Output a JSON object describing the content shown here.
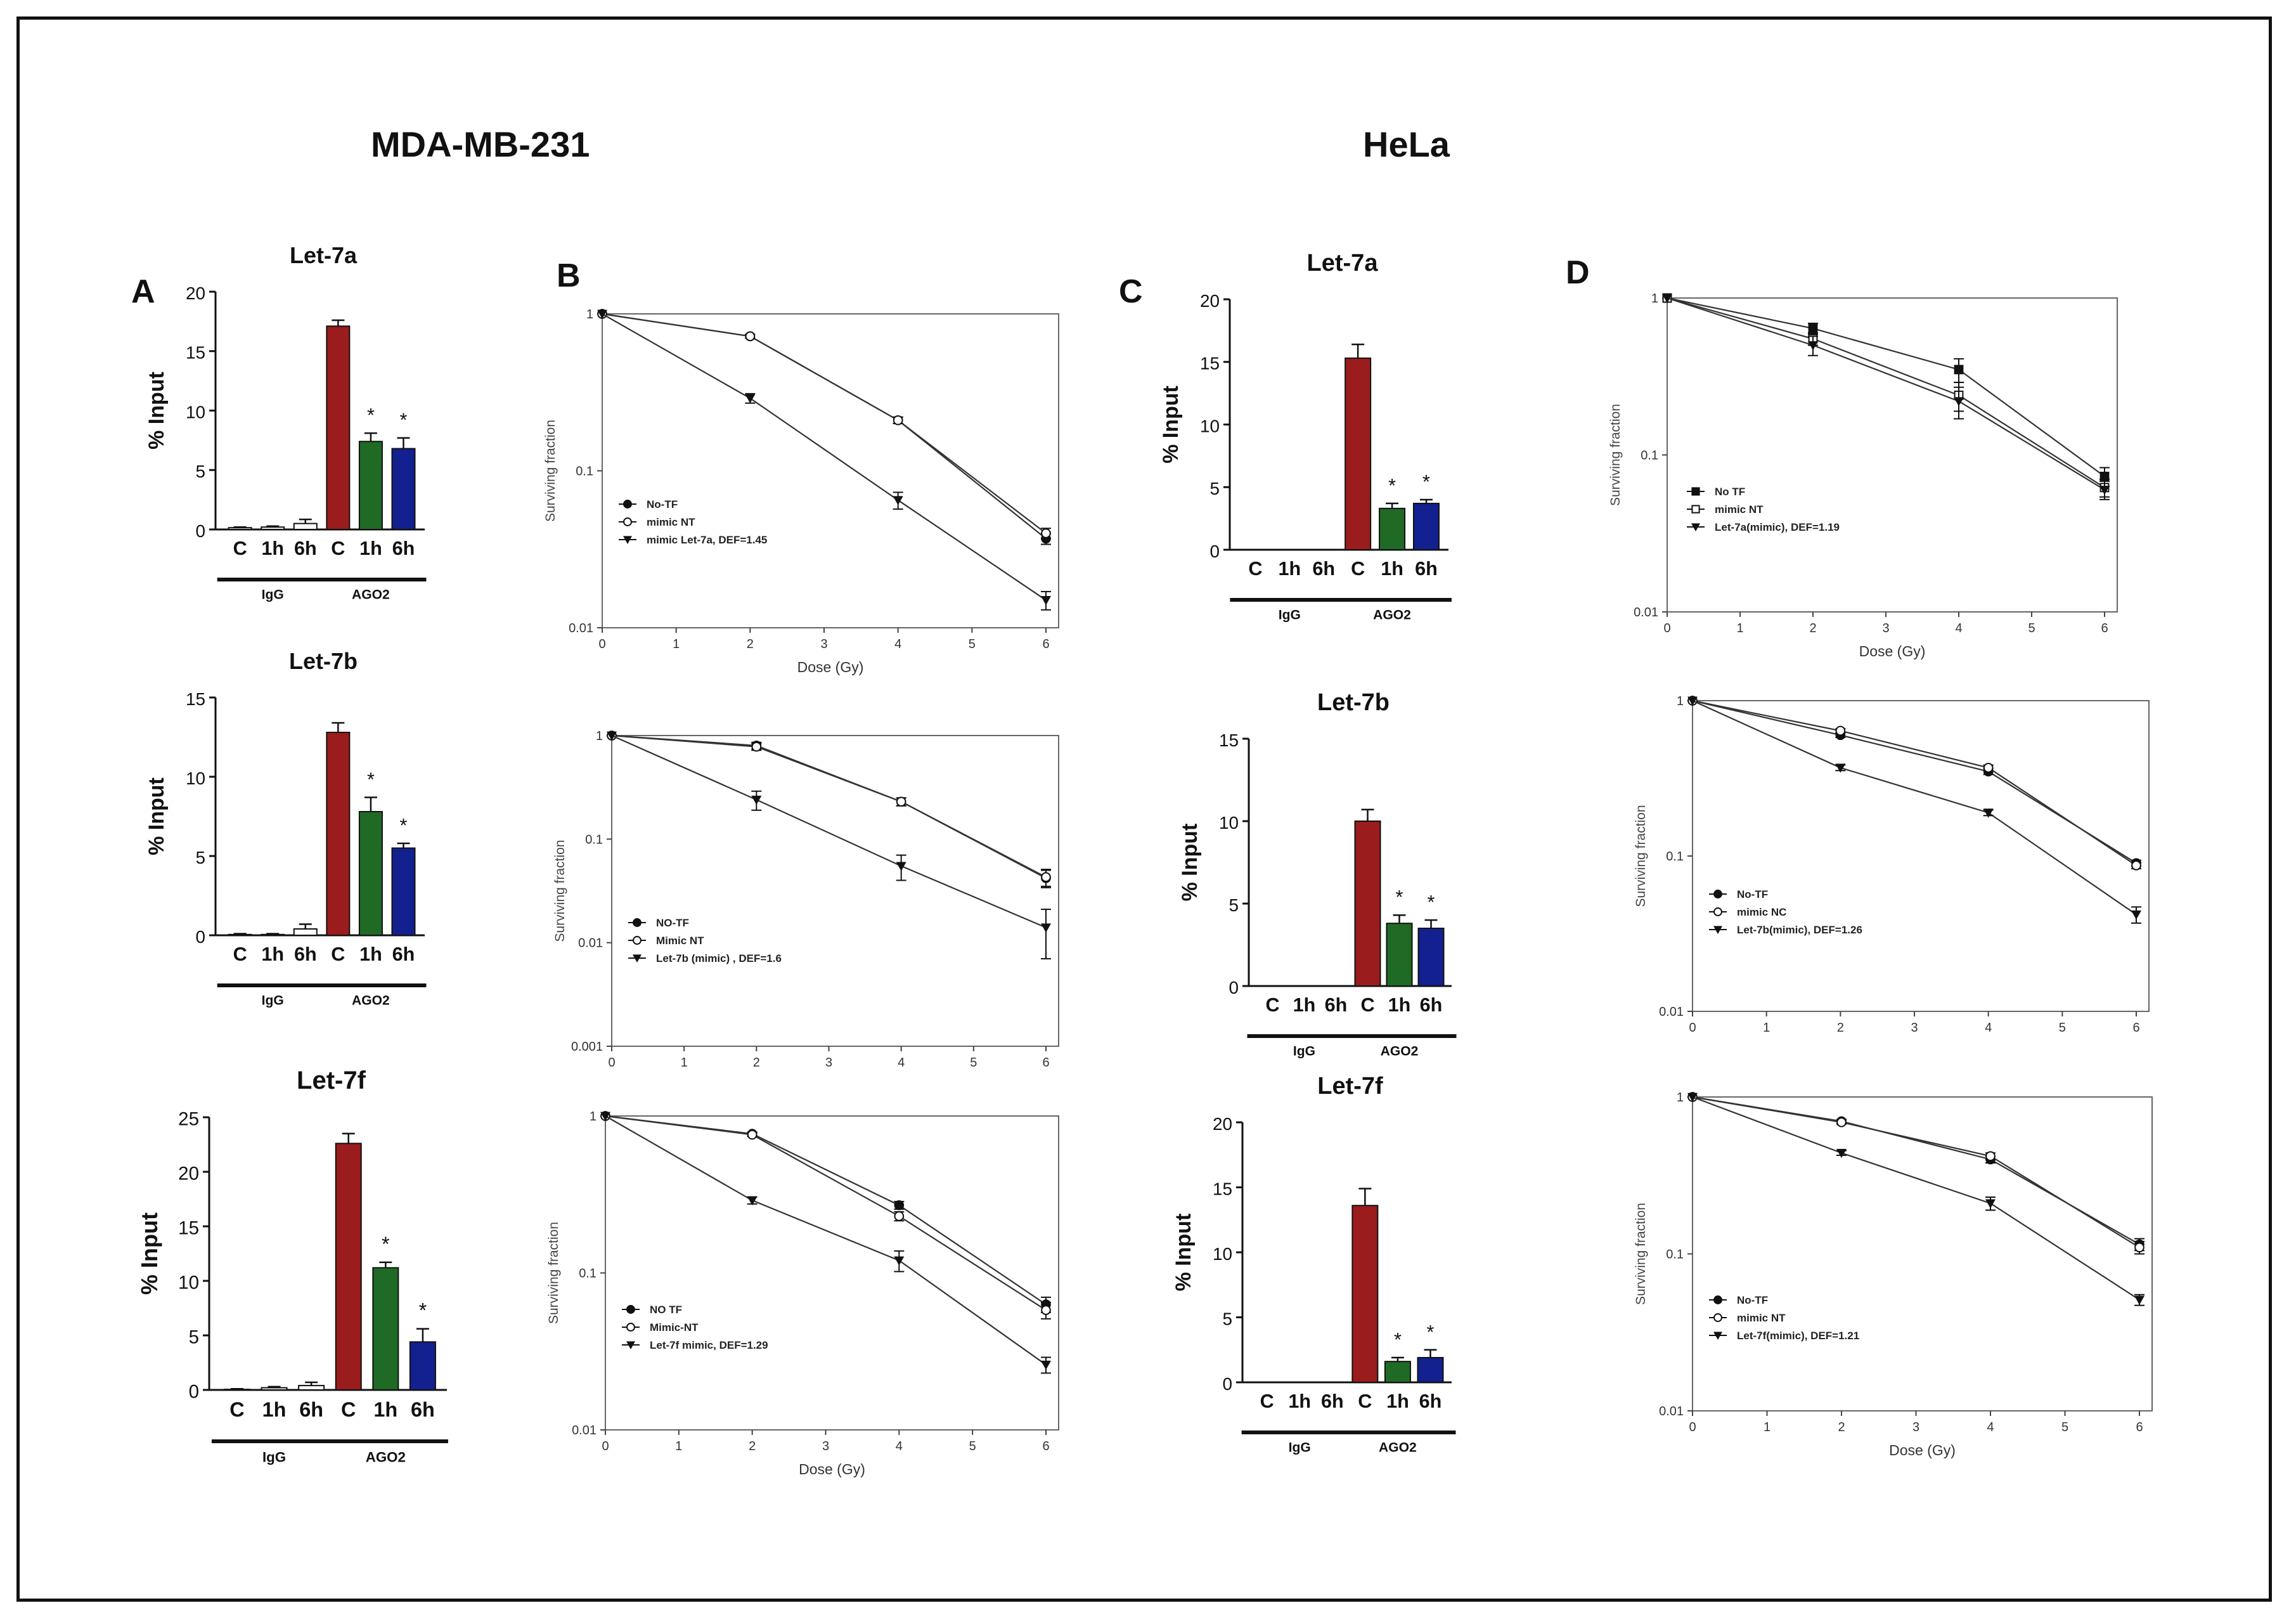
{
  "titles": {
    "left": "MDA-MB-231",
    "right": "HeLa"
  },
  "panels": {
    "a": "A",
    "b": "B",
    "c": "C",
    "d": "D"
  },
  "colors": {
    "bar_c": "#9b1c1c",
    "bar_1h": "#1f6b25",
    "bar_6h": "#13208f",
    "igg": "#ffffff"
  },
  "chart_data": [
    {
      "id": "A1",
      "type": "bar",
      "title": "Let-7a",
      "ylabel": "% Input",
      "ylim": [
        0,
        20
      ],
      "yticks": [
        0,
        5,
        10,
        15,
        20
      ],
      "categories": [
        "C",
        "1h",
        "6h",
        "C",
        "1h",
        "6h"
      ],
      "groups": [
        "IgG",
        "AGO2"
      ],
      "values": [
        0.15,
        0.2,
        0.5,
        17.1,
        7.4,
        6.8
      ],
      "errors": [
        0.05,
        0.08,
        0.35,
        0.5,
        0.7,
        0.9
      ],
      "significance": [
        "",
        "",
        "",
        "",
        "*",
        "*"
      ]
    },
    {
      "id": "A2",
      "type": "bar",
      "title": "Let-7b",
      "ylabel": "% Input",
      "ylim": [
        0,
        15
      ],
      "yticks": [
        0,
        5,
        10,
        15
      ],
      "categories": [
        "C",
        "1h",
        "6h",
        "C",
        "1h",
        "6h"
      ],
      "groups": [
        "IgG",
        "AGO2"
      ],
      "values": [
        0.05,
        0.05,
        0.4,
        12.8,
        7.8,
        5.5
      ],
      "errors": [
        0.05,
        0.05,
        0.3,
        0.6,
        0.9,
        0.3
      ],
      "significance": [
        "",
        "",
        "",
        "",
        "*",
        "*"
      ]
    },
    {
      "id": "A3",
      "type": "bar",
      "title": "Let-7f",
      "ylabel": "% Input",
      "ylim": [
        0,
        25
      ],
      "yticks": [
        0,
        5,
        10,
        15,
        20,
        25
      ],
      "categories": [
        "C",
        "1h",
        "6h",
        "C",
        "1h",
        "6h"
      ],
      "groups": [
        "IgG",
        "AGO2"
      ],
      "values": [
        0.05,
        0.2,
        0.4,
        22.6,
        11.2,
        4.4
      ],
      "errors": [
        0.05,
        0.1,
        0.3,
        0.9,
        0.5,
        1.2
      ],
      "significance": [
        "",
        "",
        "",
        "",
        "*",
        "*"
      ]
    },
    {
      "id": "B1",
      "type": "line",
      "yscale": "log",
      "xlabel": "Dose (Gy)",
      "ylabel": "Surviving fraction",
      "xlim": [
        0,
        6
      ],
      "xticks": [
        0,
        1,
        2,
        3,
        4,
        5,
        6
      ],
      "yrange": [
        0.01,
        1
      ],
      "yticks": [
        0.01,
        0.1,
        1
      ],
      "ytick_labels": [
        "0.01",
        "0.1",
        "1"
      ],
      "series": [
        {
          "name": "No-TF",
          "marker": "filled-circle",
          "x": [
            0,
            2,
            4,
            6
          ],
          "y": [
            1,
            0.72,
            0.21,
            0.037
          ],
          "err": [
            0,
            0.02,
            0.01,
            0.003
          ]
        },
        {
          "name": "mimic NT",
          "marker": "open-circle",
          "x": [
            0,
            2,
            4,
            6
          ],
          "y": [
            1,
            0.72,
            0.21,
            0.04
          ],
          "err": [
            0,
            0.02,
            0.01,
            0.003
          ]
        },
        {
          "name": "mimic Let-7a,  DEF=1.45",
          "marker": "filled-triangle",
          "x": [
            0,
            2,
            4,
            6
          ],
          "y": [
            1,
            0.29,
            0.065,
            0.015
          ],
          "err": [
            0,
            0.02,
            0.008,
            0.002
          ]
        }
      ]
    },
    {
      "id": "B2",
      "type": "line",
      "yscale": "log",
      "xlabel": "",
      "ylabel": "Surviving fraction",
      "xlim": [
        0,
        6
      ],
      "xticks": [
        0,
        1,
        2,
        3,
        4,
        5,
        6
      ],
      "yrange": [
        0.001,
        1
      ],
      "yticks": [
        0.001,
        0.01,
        0.1,
        1
      ],
      "ytick_labels": [
        "0.001",
        "0.01",
        "0.1",
        "1"
      ],
      "series": [
        {
          "name": "NO-TF",
          "marker": "filled-circle",
          "x": [
            0,
            2,
            4,
            6
          ],
          "y": [
            1,
            0.8,
            0.23,
            0.042
          ],
          "err": [
            0,
            0.06,
            0.02,
            0.008
          ]
        },
        {
          "name": "Mimic NT",
          "marker": "open-circle",
          "x": [
            0,
            2,
            4,
            6
          ],
          "y": [
            1,
            0.78,
            0.23,
            0.043
          ],
          "err": [
            0,
            0.06,
            0.02,
            0.008
          ]
        },
        {
          "name": "Let-7b (mimic) , DEF=1.6",
          "marker": "filled-triangle",
          "x": [
            0,
            2,
            4,
            6
          ],
          "y": [
            1,
            0.24,
            0.055,
            0.014
          ],
          "err": [
            0,
            0.05,
            0.015,
            0.007
          ]
        }
      ]
    },
    {
      "id": "B3",
      "type": "line",
      "yscale": "log",
      "xlabel": "Dose (Gy)",
      "ylabel": "Surviving fraction",
      "xlim": [
        0,
        6
      ],
      "xticks": [
        0,
        1,
        2,
        3,
        4,
        5,
        6
      ],
      "yrange": [
        0.01,
        1
      ],
      "yticks": [
        0.01,
        0.1,
        1
      ],
      "ytick_labels": [
        "0.01",
        "0.1",
        "1"
      ],
      "series": [
        {
          "name": "NO TF",
          "marker": "filled-circle",
          "x": [
            0,
            2,
            4,
            6
          ],
          "y": [
            1,
            0.77,
            0.27,
            0.063
          ],
          "err": [
            0,
            0.02,
            0.015,
            0.007
          ]
        },
        {
          "name": "Mimic-NT",
          "marker": "open-circle",
          "x": [
            0,
            2,
            4,
            6
          ],
          "y": [
            1,
            0.76,
            0.23,
            0.058
          ],
          "err": [
            0,
            0.02,
            0.015,
            0.007
          ]
        },
        {
          "name": "Let-7f mimic,  DEF=1.29",
          "marker": "filled-triangle",
          "x": [
            0,
            2,
            4,
            6
          ],
          "y": [
            1,
            0.29,
            0.12,
            0.026
          ],
          "err": [
            0,
            0.015,
            0.018,
            0.003
          ]
        }
      ]
    },
    {
      "id": "C1",
      "type": "bar",
      "title": "Let-7a",
      "ylabel": "% Input",
      "ylim": [
        0,
        20
      ],
      "yticks": [
        0,
        5,
        10,
        15,
        20
      ],
      "categories": [
        "C",
        "1h",
        "6h",
        "C",
        "1h",
        "6h"
      ],
      "groups": [
        "IgG",
        "AGO2"
      ],
      "values": [
        0,
        0,
        0,
        15.3,
        3.3,
        3.7
      ],
      "errors": [
        0,
        0,
        0,
        1.1,
        0.4,
        0.3
      ],
      "significance": [
        "",
        "",
        "",
        "",
        "*",
        "*"
      ]
    },
    {
      "id": "C2",
      "type": "bar",
      "title": "Let-7b",
      "ylabel": "% Input",
      "ylim": [
        0,
        15
      ],
      "yticks": [
        0,
        5,
        10,
        15
      ],
      "categories": [
        "C",
        "1h",
        "6h",
        "C",
        "1h",
        "6h"
      ],
      "groups": [
        "IgG",
        "AGO2"
      ],
      "values": [
        0,
        0,
        0,
        10,
        3.8,
        3.5
      ],
      "errors": [
        0,
        0,
        0,
        0.7,
        0.5,
        0.5
      ],
      "significance": [
        "",
        "",
        "",
        "",
        "*",
        "*"
      ]
    },
    {
      "id": "C3",
      "type": "bar",
      "title": "Let-7f",
      "ylabel": "% Input",
      "ylim": [
        0,
        20
      ],
      "yticks": [
        0,
        5,
        10,
        15,
        20
      ],
      "categories": [
        "C",
        "1h",
        "6h",
        "C",
        "1h",
        "6h"
      ],
      "groups": [
        "IgG",
        "AGO2"
      ],
      "values": [
        0,
        0,
        0,
        13.6,
        1.6,
        1.9
      ],
      "errors": [
        0,
        0,
        0,
        1.3,
        0.3,
        0.6
      ],
      "significance": [
        "",
        "",
        "",
        "",
        "*",
        "*"
      ]
    },
    {
      "id": "D1",
      "type": "line",
      "yscale": "log",
      "xlabel": "Dose (Gy)",
      "ylabel": "Surviving fraction",
      "xlim": [
        0,
        6
      ],
      "xticks": [
        0,
        1,
        2,
        3,
        4,
        5,
        6
      ],
      "yrange": [
        0.01,
        1
      ],
      "yticks": [
        0.01,
        0.1,
        1
      ],
      "ytick_labels": [
        "0.01",
        "0.1",
        "1"
      ],
      "series": [
        {
          "name": "No TF",
          "marker": "filled-square",
          "x": [
            0,
            2,
            4,
            6
          ],
          "y": [
            1,
            0.64,
            0.35,
            0.073
          ],
          "err": [
            0,
            0.05,
            0.06,
            0.01
          ]
        },
        {
          "name": "mimic NT",
          "marker": "open-square",
          "x": [
            0,
            2,
            4,
            6
          ],
          "y": [
            1,
            0.55,
            0.24,
            0.062
          ],
          "err": [
            0,
            0.05,
            0.05,
            0.008
          ]
        },
        {
          "name": "Let-7a(mimic), DEF=1.19",
          "marker": "filled-triangle",
          "x": [
            0,
            2,
            4,
            6
          ],
          "y": [
            1,
            0.5,
            0.22,
            0.06
          ],
          "err": [
            0,
            0.07,
            0.05,
            0.008
          ]
        }
      ]
    },
    {
      "id": "D2",
      "type": "line",
      "yscale": "log",
      "xlabel": "",
      "ylabel": "Surviving fraction",
      "xlim": [
        0,
        6
      ],
      "xticks": [
        0,
        1,
        2,
        3,
        4,
        5,
        6
      ],
      "yrange": [
        0.01,
        1
      ],
      "yticks": [
        0.01,
        0.1,
        1
      ],
      "ytick_labels": [
        "0.01",
        "0.1",
        "1"
      ],
      "series": [
        {
          "name": "No-TF",
          "marker": "filled-circle",
          "x": [
            0,
            2,
            4,
            6
          ],
          "y": [
            1,
            0.6,
            0.35,
            0.09
          ],
          "err": [
            0,
            0.02,
            0.015,
            0.004
          ]
        },
        {
          "name": "mimic NC",
          "marker": "open-circle",
          "x": [
            0,
            2,
            4,
            6
          ],
          "y": [
            1,
            0.64,
            0.37,
            0.087
          ],
          "err": [
            0,
            0.02,
            0.015,
            0.004
          ]
        },
        {
          "name": "Let-7b(mimic), DEF=1.26",
          "marker": "filled-triangle",
          "x": [
            0,
            2,
            4,
            6
          ],
          "y": [
            1,
            0.37,
            0.19,
            0.042
          ],
          "err": [
            0,
            0.015,
            0.008,
            0.005
          ]
        }
      ]
    },
    {
      "id": "D3",
      "type": "line",
      "yscale": "log",
      "xlabel": "Dose (Gy)",
      "ylabel": "Surviving fraction",
      "xlim": [
        0,
        6
      ],
      "xticks": [
        0,
        1,
        2,
        3,
        4,
        5,
        6
      ],
      "yrange": [
        0.01,
        1
      ],
      "yticks": [
        0.01,
        0.1,
        1
      ],
      "ytick_labels": [
        "0.01",
        "0.1",
        "1"
      ],
      "series": [
        {
          "name": "No-TF",
          "marker": "filled-circle",
          "x": [
            0,
            2,
            4,
            6
          ],
          "y": [
            1,
            0.7,
            0.4,
            0.115
          ],
          "err": [
            0,
            0.02,
            0.02,
            0.01
          ]
        },
        {
          "name": "mimic NT",
          "marker": "open-circle",
          "x": [
            0,
            2,
            4,
            6
          ],
          "y": [
            1,
            0.69,
            0.42,
            0.11
          ],
          "err": [
            0,
            0.02,
            0.02,
            0.01
          ]
        },
        {
          "name": "Let-7f(mimic), DEF=1.21",
          "marker": "filled-triangle",
          "x": [
            0,
            2,
            4,
            6
          ],
          "y": [
            1,
            0.44,
            0.21,
            0.051
          ],
          "err": [
            0,
            0.015,
            0.02,
            0.004
          ]
        }
      ]
    }
  ]
}
